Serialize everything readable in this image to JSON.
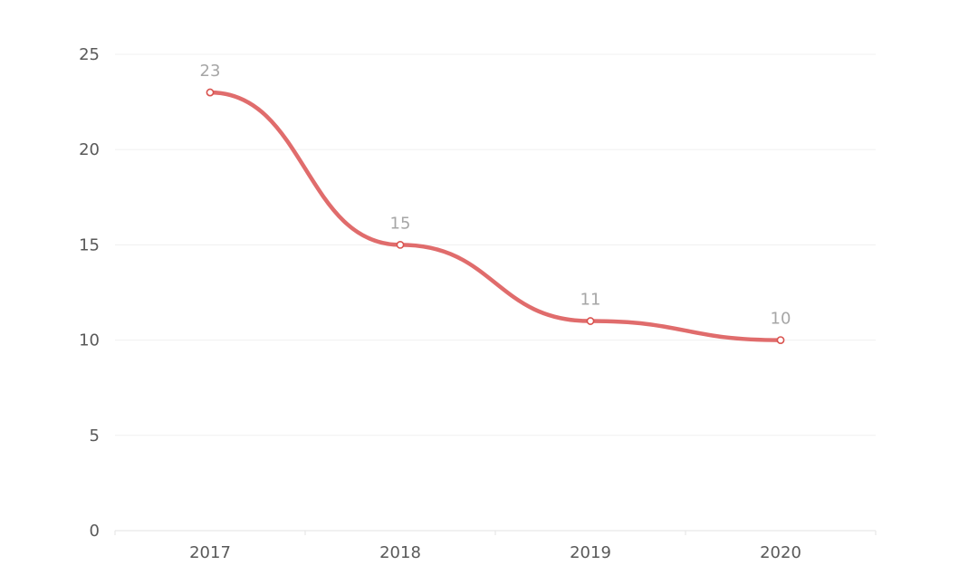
{
  "chart_data": {
    "type": "line",
    "smooth": true,
    "categories": [
      "2017",
      "2018",
      "2019",
      "2020"
    ],
    "series": [
      {
        "values": [
          23,
          15,
          11,
          10
        ],
        "color": "#e06c6c"
      }
    ],
    "ylim": [
      0,
      25
    ],
    "yticks": [
      "0",
      "5",
      "10",
      "15",
      "20",
      "25"
    ],
    "data_labels": [
      "23",
      "15",
      "11",
      "10"
    ],
    "grid": true,
    "legend": "none",
    "colors": {
      "grid": "#f0f0f0",
      "axis": "#e3e3e3",
      "tick_text": "#595959",
      "label_text": "#a6a6a6",
      "point_stroke": "#d9534f"
    }
  }
}
